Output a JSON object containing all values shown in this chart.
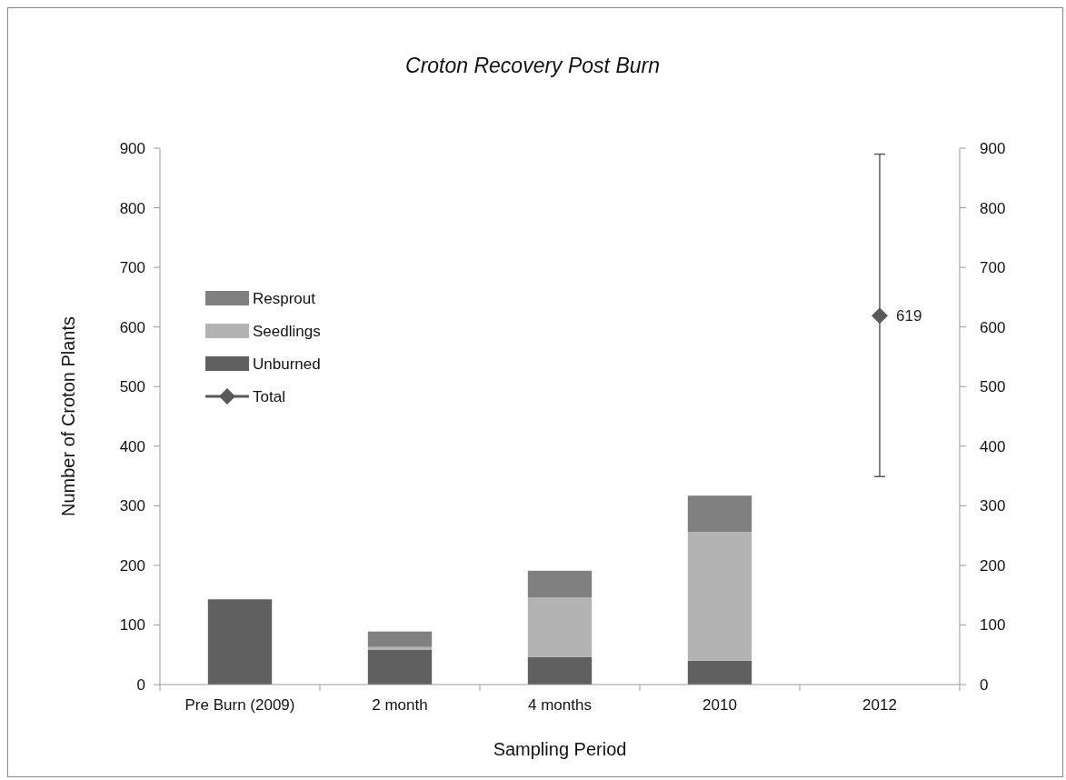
{
  "chart_data": {
    "type": "bar",
    "title": "Croton Recovery Post Burn",
    "xlabel": "Sampling Period",
    "ylabel": "Number of Croton Plants",
    "categories": [
      "Pre Burn (2009)",
      "2 month",
      "4 months",
      "2010",
      "2012"
    ],
    "stacked": true,
    "ylim": [
      0,
      900
    ],
    "yticks": [
      0,
      100,
      200,
      300,
      400,
      500,
      600,
      700,
      800,
      900
    ],
    "y2lim": [
      0,
      900
    ],
    "y2ticks": [
      0,
      100,
      200,
      300,
      400,
      500,
      600,
      700,
      800,
      900
    ],
    "grid": false,
    "legend": "left",
    "series": [
      {
        "name": "Unburned",
        "color": "#606060",
        "values": [
          143,
          58,
          46,
          40,
          null
        ]
      },
      {
        "name": "Seedlings",
        "color": "#b3b3b3",
        "values": [
          null,
          5,
          100,
          216,
          null
        ]
      },
      {
        "name": "Resprout",
        "color": "#808080",
        "values": [
          null,
          26,
          45,
          61,
          null
        ]
      },
      {
        "name": "Total",
        "type": "line",
        "color": "#595959",
        "marker": "diamond",
        "values": [
          null,
          null,
          null,
          null,
          619
        ],
        "errors": [
          null,
          null,
          null,
          null,
          [
            349,
            890
          ]
        ],
        "value_labels": [
          null,
          null,
          null,
          null,
          "619"
        ]
      }
    ]
  }
}
